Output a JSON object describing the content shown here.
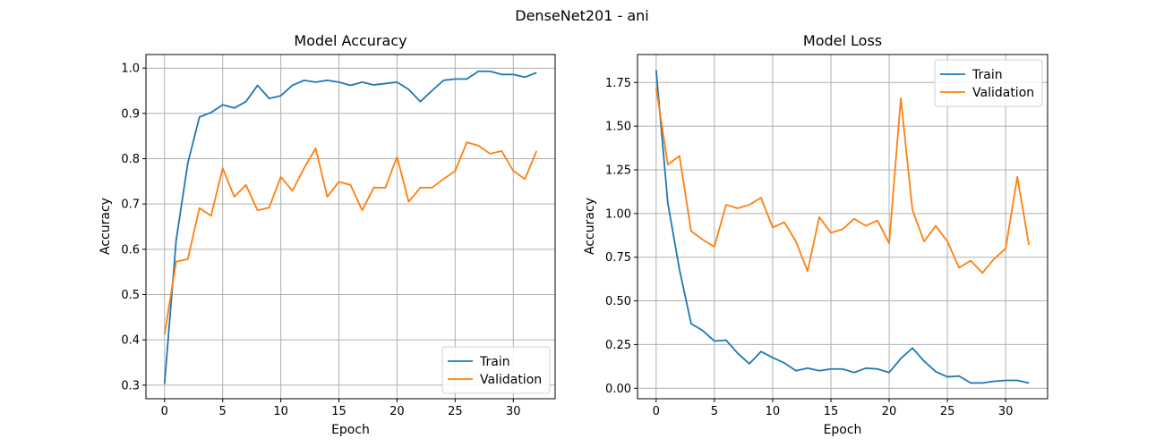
{
  "figure": {
    "suptitle": "DenseNet201 - ani",
    "background": "#ffffff",
    "grid_color": "#b0b0b0",
    "colors": {
      "train": "#1f77b4",
      "validation": "#ff7f0e"
    }
  },
  "chart_data": [
    {
      "type": "line",
      "title": "Model Accuracy",
      "xlabel": "Epoch",
      "ylabel": "Accuracy",
      "xlim": [
        -1.6,
        33.6
      ],
      "ylim": [
        0.27,
        1.03
      ],
      "xticks": [
        0,
        5,
        10,
        15,
        20,
        25,
        30
      ],
      "xtick_labels": [
        "0",
        "5",
        "10",
        "15",
        "20",
        "25",
        "30"
      ],
      "yticks": [
        0.3,
        0.4,
        0.5,
        0.6,
        0.7,
        0.8,
        0.9,
        1.0
      ],
      "ytick_labels": [
        "0.3",
        "0.4",
        "0.5",
        "0.6",
        "0.7",
        "0.8",
        "0.9",
        "1.0"
      ],
      "grid": true,
      "legend_position": "lower-right",
      "x": [
        0,
        1,
        2,
        3,
        4,
        5,
        6,
        7,
        8,
        9,
        10,
        11,
        12,
        13,
        14,
        15,
        16,
        17,
        18,
        19,
        20,
        21,
        22,
        23,
        24,
        25,
        26,
        27,
        28,
        29,
        30,
        31,
        32
      ],
      "series": [
        {
          "name": "Train",
          "color": "#1f77b4",
          "values": [
            0.303,
            0.62,
            0.79,
            0.892,
            0.902,
            0.919,
            0.912,
            0.926,
            0.962,
            0.933,
            0.939,
            0.962,
            0.973,
            0.969,
            0.973,
            0.969,
            0.962,
            0.969,
            0.963,
            0.966,
            0.969,
            0.953,
            0.926,
            0.95,
            0.973,
            0.976,
            0.976,
            0.993,
            0.993,
            0.986,
            0.986,
            0.98,
            0.99
          ]
        },
        {
          "name": "Validation",
          "color": "#ff7f0e",
          "values": [
            0.412,
            0.573,
            0.578,
            0.691,
            0.674,
            0.779,
            0.716,
            0.742,
            0.686,
            0.692,
            0.76,
            0.729,
            0.779,
            0.823,
            0.716,
            0.749,
            0.742,
            0.686,
            0.736,
            0.736,
            0.804,
            0.705,
            0.736,
            0.736,
            0.755,
            0.773,
            0.836,
            0.829,
            0.811,
            0.817,
            0.773,
            0.755,
            0.817
          ]
        }
      ]
    },
    {
      "type": "line",
      "title": "Model Loss",
      "xlabel": "Epoch",
      "ylabel": "Accuracy",
      "xlim": [
        -1.6,
        33.6
      ],
      "ylim": [
        -0.06,
        1.91
      ],
      "xticks": [
        0,
        5,
        10,
        15,
        20,
        25,
        30
      ],
      "xtick_labels": [
        "0",
        "5",
        "10",
        "15",
        "20",
        "25",
        "30"
      ],
      "yticks": [
        0.0,
        0.25,
        0.5,
        0.75,
        1.0,
        1.25,
        1.5,
        1.75
      ],
      "ytick_labels": [
        "0.00",
        "0.25",
        "0.50",
        "0.75",
        "1.00",
        "1.25",
        "1.50",
        "1.75"
      ],
      "grid": true,
      "legend_position": "upper-right",
      "x": [
        0,
        1,
        2,
        3,
        4,
        5,
        6,
        7,
        8,
        9,
        10,
        11,
        12,
        13,
        14,
        15,
        16,
        17,
        18,
        19,
        20,
        21,
        22,
        23,
        24,
        25,
        26,
        27,
        28,
        29,
        30,
        31,
        32
      ],
      "series": [
        {
          "name": "Train",
          "color": "#1f77b4",
          "values": [
            1.82,
            1.06,
            0.68,
            0.37,
            0.33,
            0.27,
            0.275,
            0.2,
            0.14,
            0.21,
            0.175,
            0.145,
            0.1,
            0.115,
            0.1,
            0.11,
            0.11,
            0.09,
            0.115,
            0.11,
            0.09,
            0.17,
            0.23,
            0.155,
            0.095,
            0.065,
            0.07,
            0.03,
            0.03,
            0.04,
            0.045,
            0.045,
            0.03
          ]
        },
        {
          "name": "Validation",
          "color": "#ff7f0e",
          "values": [
            1.72,
            1.28,
            1.33,
            0.9,
            0.85,
            0.81,
            1.05,
            1.03,
            1.05,
            1.09,
            0.92,
            0.95,
            0.84,
            0.67,
            0.98,
            0.89,
            0.91,
            0.97,
            0.93,
            0.96,
            0.83,
            1.66,
            1.02,
            0.84,
            0.93,
            0.84,
            0.69,
            0.73,
            0.66,
            0.74,
            0.8,
            1.21,
            0.82
          ]
        }
      ]
    }
  ]
}
